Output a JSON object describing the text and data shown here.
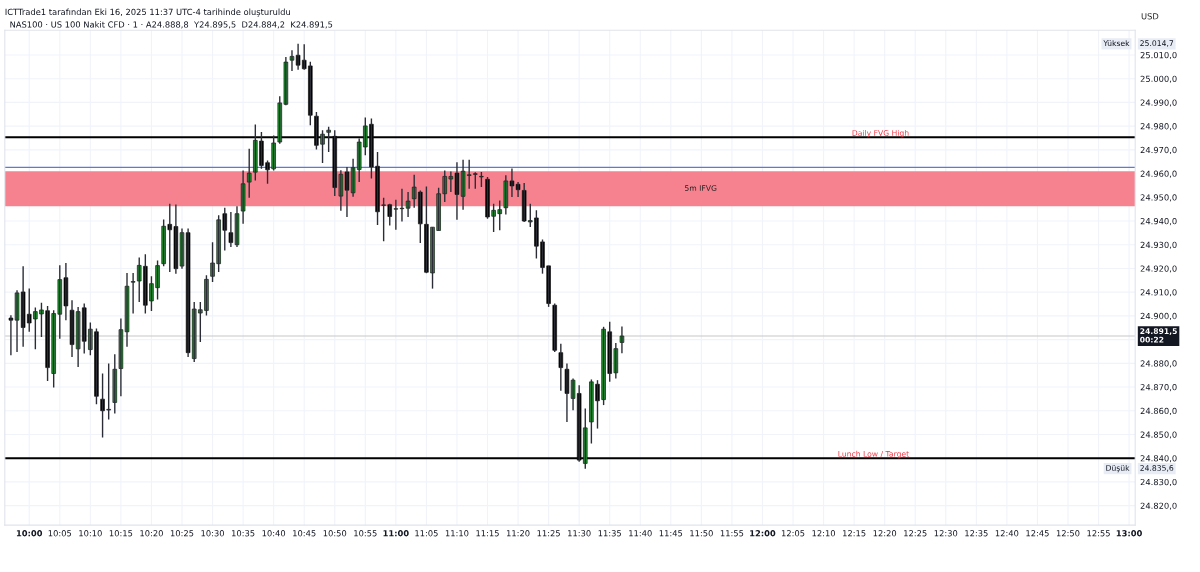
{
  "chart_data": {
    "type": "candlestick",
    "title": "ICTTrade1 tarafından Eki 16, 2025 11:37 UTC-4 tarihinde oluşturuldu",
    "subtitle": "NAS100 · US 100 Nakit CFD · 1 · A24.888,8  Y24.895,5  D24.884,2  K24.891,5",
    "ylabel": "USD",
    "x": [
      "2025-10-16T09:57",
      "2025-10-16T09:58",
      "2025-10-16T09:59",
      "2025-10-16T10:00",
      "2025-10-16T10:01",
      "2025-10-16T10:02",
      "2025-10-16T10:03",
      "2025-10-16T10:04",
      "2025-10-16T10:05",
      "2025-10-16T10:06",
      "2025-10-16T10:07",
      "2025-10-16T10:08",
      "2025-10-16T10:09",
      "2025-10-16T10:10",
      "2025-10-16T10:11",
      "2025-10-16T10:12",
      "2025-10-16T10:13",
      "2025-10-16T10:14",
      "2025-10-16T10:15",
      "2025-10-16T10:16",
      "2025-10-16T10:17",
      "2025-10-16T10:18",
      "2025-10-16T10:19",
      "2025-10-16T10:20",
      "2025-10-16T10:21",
      "2025-10-16T10:22",
      "2025-10-16T10:23",
      "2025-10-16T10:24",
      "2025-10-16T10:25",
      "2025-10-16T10:26",
      "2025-10-16T10:27",
      "2025-10-16T10:28",
      "2025-10-16T10:29",
      "2025-10-16T10:30",
      "2025-10-16T10:31",
      "2025-10-16T10:32",
      "2025-10-16T10:33",
      "2025-10-16T10:34",
      "2025-10-16T10:35",
      "2025-10-16T10:36",
      "2025-10-16T10:37",
      "2025-10-16T10:38",
      "2025-10-16T10:39",
      "2025-10-16T10:40",
      "2025-10-16T10:41",
      "2025-10-16T10:42",
      "2025-10-16T10:43",
      "2025-10-16T10:44",
      "2025-10-16T10:45",
      "2025-10-16T10:46",
      "2025-10-16T10:47",
      "2025-10-16T10:48",
      "2025-10-16T10:49",
      "2025-10-16T10:50",
      "2025-10-16T10:51",
      "2025-10-16T10:52",
      "2025-10-16T10:53",
      "2025-10-16T10:54",
      "2025-10-16T10:55",
      "2025-10-16T10:56",
      "2025-10-16T10:57",
      "2025-10-16T10:58",
      "2025-10-16T10:59",
      "2025-10-16T11:00",
      "2025-10-16T11:01",
      "2025-10-16T11:02",
      "2025-10-16T11:03",
      "2025-10-16T11:04",
      "2025-10-16T11:05",
      "2025-10-16T11:06",
      "2025-10-16T11:07",
      "2025-10-16T11:08",
      "2025-10-16T11:09",
      "2025-10-16T11:10",
      "2025-10-16T11:11",
      "2025-10-16T11:12",
      "2025-10-16T11:13",
      "2025-10-16T11:14",
      "2025-10-16T11:15",
      "2025-10-16T11:16",
      "2025-10-16T11:17",
      "2025-10-16T11:18",
      "2025-10-16T11:19",
      "2025-10-16T11:20",
      "2025-10-16T11:21",
      "2025-10-16T11:22",
      "2025-10-16T11:23",
      "2025-10-16T11:24",
      "2025-10-16T11:25",
      "2025-10-16T11:26",
      "2025-10-16T11:27",
      "2025-10-16T11:28",
      "2025-10-16T11:29",
      "2025-10-16T11:30",
      "2025-10-16T11:31",
      "2025-10-16T11:32",
      "2025-10-16T11:33",
      "2025-10-16T11:34",
      "2025-10-16T11:35",
      "2025-10-16T11:36",
      "2025-10-16T11:37"
    ],
    "ohlc": [
      [
        24899.1,
        24900.3,
        24883.4,
        24898.2
      ],
      [
        24898.2,
        24910.8,
        24884.8,
        24909.7
      ],
      [
        24910.1,
        24920.9,
        24887.0,
        24895.1
      ],
      [
        24900.7,
        24911.5,
        24893.3,
        24897.0
      ],
      [
        24898.7,
        24903.5,
        24885.9,
        24901.8
      ],
      [
        24900.8,
        24905.5,
        24891.1,
        24902.5
      ],
      [
        24902.2,
        24904.2,
        24872.6,
        24878.2
      ],
      [
        24875.7,
        24902.4,
        24869.8,
        24901.0
      ],
      [
        24900.7,
        24921.3,
        24890.4,
        24915.3
      ],
      [
        24916.1,
        24922.3,
        24898.2,
        24904.2
      ],
      [
        24902.4,
        24906.6,
        24882.7,
        24887.9
      ],
      [
        24886.1,
        24903.8,
        24878.5,
        24901.8
      ],
      [
        24903.4,
        24905.2,
        24884.1,
        24889.3
      ],
      [
        24885.8,
        24897.2,
        24883.4,
        24894.4
      ],
      [
        24893.3,
        24894.7,
        24862.8,
        24866.1
      ],
      [
        24864.9,
        24875.7,
        24848.7,
        24860.0
      ],
      [
        24860.3,
        24879.9,
        24856.3,
        24860.6
      ],
      [
        24863.5,
        24883.8,
        24858.8,
        24877.5
      ],
      [
        24877.8,
        24898.9,
        24866.1,
        24894.2
      ],
      [
        24893.3,
        24918.1,
        24887.0,
        24912.5
      ],
      [
        24914.2,
        24918.1,
        24901.0,
        24914.5
      ],
      [
        24914.7,
        24924.6,
        24905.9,
        24921.3
      ],
      [
        24920.9,
        24926.0,
        24901.0,
        24904.5
      ],
      [
        24906.3,
        24916.7,
        24902.1,
        24913.6
      ],
      [
        24911.9,
        24923.4,
        24906.9,
        24921.2
      ],
      [
        24922.0,
        24940.6,
        24920.9,
        24937.8
      ],
      [
        24938.6,
        24947.3,
        24918.5,
        24936.3
      ],
      [
        24937.7,
        24947.0,
        24917.8,
        24919.9
      ],
      [
        24921.0,
        24936.8,
        24919.9,
        24935.1
      ],
      [
        24935.1,
        24936.8,
        24882.7,
        24884.5
      ],
      [
        24882.0,
        24905.9,
        24880.6,
        24902.9
      ],
      [
        24901.2,
        24905.9,
        24889.0,
        24902.6
      ],
      [
        24902.3,
        24917.1,
        24900.2,
        24915.4
      ],
      [
        24916.7,
        24931.1,
        24914.3,
        24922.3
      ],
      [
        24922.0,
        24942.4,
        24918.5,
        24940.5
      ],
      [
        24943.1,
        24945.6,
        24927.6,
        24936.1
      ],
      [
        24935.1,
        24943.8,
        24929.0,
        24930.9
      ],
      [
        24930.0,
        24946.2,
        24929.0,
        24943.1
      ],
      [
        24944.2,
        24961.3,
        24938.9,
        24955.7
      ],
      [
        24956.4,
        24970.5,
        24949.8,
        24960.2
      ],
      [
        24960.6,
        24980.7,
        24957.1,
        24974.0
      ],
      [
        24973.7,
        24977.5,
        24962.0,
        24963.4
      ],
      [
        24964.6,
        24965.5,
        24955.7,
        24961.6
      ],
      [
        24962.0,
        24976.1,
        24961.3,
        24972.9
      ],
      [
        24973.3,
        24992.6,
        24972.6,
        24989.8
      ],
      [
        24989.2,
        25009.2,
        24988.8,
        25007.0
      ],
      [
        25007.8,
        25012.0,
        25003.3,
        25009.4
      ],
      [
        25009.9,
        25014.7,
        25003.8,
        25005.7
      ],
      [
        25007.8,
        25014.5,
        25003.8,
        25004.2
      ],
      [
        25005.4,
        25007.1,
        24980.4,
        24984.6
      ],
      [
        24984.2,
        24986.0,
        24970.1,
        24971.9
      ],
      [
        24972.4,
        24978.3,
        24964.5,
        24976.6
      ],
      [
        24977.4,
        24979.7,
        24969.1,
        24978.3
      ],
      [
        24975.7,
        24978.3,
        24950.5,
        24954.1
      ],
      [
        24950.5,
        24961.4,
        24944.3,
        24959.7
      ],
      [
        24960.7,
        24962.8,
        24941.7,
        24953.0
      ],
      [
        24951.9,
        24966.3,
        24950.2,
        24962.5
      ],
      [
        24961.7,
        24974.8,
        24956.5,
        24973.3
      ],
      [
        24971.2,
        24983.6,
        24967.7,
        24980.1
      ],
      [
        24980.8,
        24983.2,
        24957.9,
        24962.8
      ],
      [
        24963.1,
        24969.1,
        24938.3,
        24943.9
      ],
      [
        24946.6,
        24949.8,
        24931.5,
        24946.8
      ],
      [
        24946.9,
        24947.3,
        24938.1,
        24941.9
      ],
      [
        24945.0,
        24949.0,
        24936.3,
        24945.2
      ],
      [
        24945.2,
        24953.6,
        24939.8,
        24945.4
      ],
      [
        24945.4,
        24952.2,
        24941.7,
        24948.4
      ],
      [
        24949.4,
        24959.5,
        24945.6,
        24954.3
      ],
      [
        24952.2,
        24952.9,
        24930.7,
        24938.8
      ],
      [
        24938.6,
        24954.6,
        24918.0,
        24918.4
      ],
      [
        24918.1,
        24937.4,
        24911.5,
        24937.4
      ],
      [
        24936.0,
        24954.0,
        24936.0,
        24951.5
      ],
      [
        24951.5,
        24961.3,
        24948.0,
        24958.8
      ],
      [
        24957.7,
        24960.9,
        24952.2,
        24958.8
      ],
      [
        24960.2,
        24964.8,
        24940.5,
        24951.2
      ],
      [
        24950.4,
        24965.8,
        24944.7,
        24961.0
      ],
      [
        24959.2,
        24965.8,
        24953.6,
        24959.5
      ],
      [
        24959.9,
        24960.6,
        24953.6,
        24959.7
      ],
      [
        24958.6,
        24960.7,
        24954.3,
        24958.8
      ],
      [
        24957.6,
        24958.6,
        24941.0,
        24941.7
      ],
      [
        24942.0,
        24947.3,
        24935.4,
        24944.5
      ],
      [
        24943.1,
        24948.7,
        24936.1,
        24944.8
      ],
      [
        24945.6,
        24959.3,
        24942.8,
        24956.9
      ],
      [
        24956.9,
        24962.1,
        24950.1,
        24954.8
      ],
      [
        24955.5,
        24956.5,
        24950.1,
        24953.2
      ],
      [
        24952.9,
        24956.0,
        24939.6,
        24940.0
      ],
      [
        24939.6,
        24947.3,
        24937.5,
        24940.2
      ],
      [
        24941.3,
        24944.5,
        24924.2,
        24929.4
      ],
      [
        24931.2,
        24932.2,
        24917.8,
        24920.4
      ],
      [
        24921.1,
        24921.1,
        24903.8,
        24905.2
      ],
      [
        24904.5,
        24905.2,
        24884.8,
        24885.5
      ],
      [
        24884.5,
        24888.3,
        24868.4,
        24878.2
      ],
      [
        24877.5,
        24879.9,
        24855.3,
        24867.3
      ],
      [
        24865.2,
        24873.6,
        24860.2,
        24872.9
      ],
      [
        24867.3,
        24870.8,
        24838.5,
        24839.2
      ],
      [
        24837.8,
        24861.0,
        24835.6,
        24852.8
      ],
      [
        24855.3,
        24873.2,
        24846.2,
        24872.2
      ],
      [
        24871.2,
        24872.9,
        24852.5,
        24864.2
      ],
      [
        24864.7,
        24895.4,
        24862.4,
        24894.4
      ],
      [
        24893.3,
        24897.5,
        24872.2,
        24875.7
      ],
      [
        24876.0,
        24888.6,
        24873.6,
        24886.2
      ],
      [
        24888.8,
        24895.5,
        24884.2,
        24891.5
      ]
    ],
    "colors": [
      "#000000",
      "#1f9a2e",
      "#000000",
      "#000000",
      "#1f9a2e",
      "#1f9a2e",
      "#000000",
      "#1f9a2e",
      "#1f9a2e",
      "#000000",
      "#000000",
      "#1f9a2e",
      "#000000",
      "#1f9a2e",
      "#000000",
      "#000000",
      "#1f9a2e",
      "#1f9a2e",
      "#1f9a2e",
      "#1f9a2e",
      "#1f9a2e",
      "#1f9a2e",
      "#000000",
      "#1f9a2e",
      "#1f9a2e",
      "#1f9a2e",
      "#000000",
      "#000000",
      "#1f9a2e",
      "#000000",
      "#1f9a2e",
      "#1f9a2e",
      "#1f9a2e",
      "#1f9a2e",
      "#1f9a2e",
      "#000000",
      "#000000",
      "#1f9a2e",
      "#1f9a2e",
      "#1f9a2e",
      "#1f9a2e",
      "#000000",
      "#000000",
      "#1f9a2e",
      "#1f9a2e",
      "#1f9a2e",
      "#1f9a2e",
      "#000000",
      "#000000",
      "#000000",
      "#000000",
      "#1f9a2e",
      "#1f9a2e",
      "#000000",
      "#1f9a2e",
      "#000000",
      "#1f9a2e",
      "#1f9a2e",
      "#1f9a2e",
      "#000000",
      "#000000",
      "#1f9a2e",
      "#000000",
      "#1f9a2e",
      "#1f9a2e",
      "#1f9a2e",
      "#1f9a2e",
      "#000000",
      "#000000",
      "#1f9a2e",
      "#1f9a2e",
      "#1f9a2e",
      "#1f9a2e",
      "#000000",
      "#1f9a2e",
      "#1f9a2e",
      "#000000",
      "#1f9a2e",
      "#000000",
      "#1f9a2e",
      "#1f9a2e",
      "#1f9a2e",
      "#000000",
      "#000000",
      "#000000",
      "#1f9a2e",
      "#000000",
      "#000000",
      "#000000",
      "#000000",
      "#000000",
      "#000000",
      "#1f9a2e",
      "#000000",
      "#1f9a2e",
      "#1f9a2e",
      "#000000",
      "#1f9a2e",
      "#000000",
      "#1f9a2e",
      "#1f9a2e"
    ],
    "xlim": [
      "2025-10-16T09:56",
      "2025-10-16T13:01"
    ],
    "xticks": [
      {
        "value": "2025-10-16T10:00",
        "label": "10:00"
      },
      {
        "value": "2025-10-16T10:05",
        "label": "10:05"
      },
      {
        "value": "2025-10-16T10:10",
        "label": "10:10"
      },
      {
        "value": "2025-10-16T10:15",
        "label": "10:15"
      },
      {
        "value": "2025-10-16T10:20",
        "label": "10:20"
      },
      {
        "value": "2025-10-16T10:25",
        "label": "10:25"
      },
      {
        "value": "2025-10-16T10:30",
        "label": "10:30"
      },
      {
        "value": "2025-10-16T10:35",
        "label": "10:35"
      },
      {
        "value": "2025-10-16T10:40",
        "label": "10:40"
      },
      {
        "value": "2025-10-16T10:45",
        "label": "10:45"
      },
      {
        "value": "2025-10-16T10:50",
        "label": "10:50"
      },
      {
        "value": "2025-10-16T10:55",
        "label": "10:55"
      },
      {
        "value": "2025-10-16T11:00",
        "label": "11:00"
      },
      {
        "value": "2025-10-16T11:05",
        "label": "11:05"
      },
      {
        "value": "2025-10-16T11:10",
        "label": "11:10"
      },
      {
        "value": "2025-10-16T11:15",
        "label": "11:15"
      },
      {
        "value": "2025-10-16T11:20",
        "label": "11:20"
      },
      {
        "value": "2025-10-16T11:25",
        "label": "11:25"
      },
      {
        "value": "2025-10-16T11:30",
        "label": "11:30"
      },
      {
        "value": "2025-10-16T11:35",
        "label": "11:35"
      },
      {
        "value": "2025-10-16T11:40",
        "label": "11:40"
      },
      {
        "value": "2025-10-16T11:45",
        "label": "11:45"
      },
      {
        "value": "2025-10-16T11:50",
        "label": "11:50"
      },
      {
        "value": "2025-10-16T11:55",
        "label": "11:55"
      },
      {
        "value": "2025-10-16T12:00",
        "label": "12:00"
      },
      {
        "value": "2025-10-16T12:05",
        "label": "12:05"
      },
      {
        "value": "2025-10-16T12:10",
        "label": "12:10"
      },
      {
        "value": "2025-10-16T12:15",
        "label": "12:15"
      },
      {
        "value": "2025-10-16T12:20",
        "label": "12:20"
      },
      {
        "value": "2025-10-16T12:25",
        "label": "12:25"
      },
      {
        "value": "2025-10-16T12:30",
        "label": "12:30"
      },
      {
        "value": "2025-10-16T12:35",
        "label": "12:35"
      },
      {
        "value": "2025-10-16T12:40",
        "label": "12:40"
      },
      {
        "value": "2025-10-16T12:45",
        "label": "12:45"
      },
      {
        "value": "2025-10-16T12:50",
        "label": "12:50"
      },
      {
        "value": "2025-10-16T12:55",
        "label": "12:55"
      },
      {
        "value": "2025-10-16T13:00",
        "label": "13:00"
      }
    ],
    "ylim": [
      24811.8,
      25020.4
    ],
    "yticks": [
      {
        "value": 24820,
        "label": "24.820,0"
      },
      {
        "value": 24830,
        "label": "24.830,0"
      },
      {
        "value": 24840,
        "label": "24.840,0"
      },
      {
        "value": 24850,
        "label": "24.850,0"
      },
      {
        "value": 24860,
        "label": "24.860,0"
      },
      {
        "value": 24870,
        "label": "24.870,0"
      },
      {
        "value": 24880,
        "label": "24.880,0"
      },
      {
        "value": 24890,
        "label": null
      },
      {
        "value": 24900,
        "label": "24.900,0"
      },
      {
        "value": 24910,
        "label": "24.910,0"
      },
      {
        "value": 24920,
        "label": "24.920,0"
      },
      {
        "value": 24930,
        "label": "24.930,0"
      },
      {
        "value": 24940,
        "label": "24.940,0"
      },
      {
        "value": 24950,
        "label": "24.950,0"
      },
      {
        "value": 24960,
        "label": "24.960,0"
      },
      {
        "value": 24970,
        "label": "24.970,0"
      },
      {
        "value": 24980,
        "label": "24.980,0"
      },
      {
        "value": 24990,
        "label": "24.990,0"
      },
      {
        "value": 25000,
        "label": "25.000,0"
      },
      {
        "value": 25010,
        "label": "25.010,0"
      }
    ],
    "grid": true,
    "bands": [
      {
        "axis": "y",
        "from": 24946.2,
        "to": 24961.0,
        "label": "5m IFVG",
        "color": "#f7828f"
      }
    ],
    "ref_lines": [
      {
        "axis": "y",
        "value": 24975.3,
        "label": "Daily FVG High",
        "color": "#000000"
      },
      {
        "axis": "y",
        "value": 24840.0,
        "label": "Lunch Low / Target",
        "color": "#000000"
      },
      {
        "axis": "y",
        "value": 24962.6,
        "color": "#5b7bd5"
      },
      {
        "axis": "y",
        "value": 24891.5,
        "color": "#c8c8c8"
      }
    ],
    "annotations": [
      "Yüksek",
      "25.014,7",
      "Düşük",
      "24.835,6",
      "24.891,5\n00:22"
    ]
  }
}
